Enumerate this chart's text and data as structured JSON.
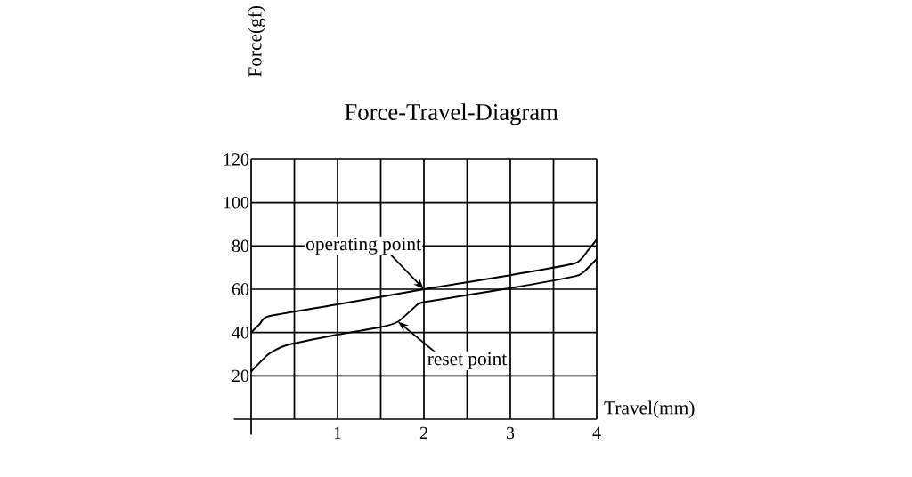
{
  "chart_data": {
    "type": "line",
    "title": "Force-Travel-Diagram",
    "xlabel": "Travel(mm)",
    "ylabel": "Force(gf)",
    "xlim": [
      0,
      4
    ],
    "ylim": [
      0,
      120
    ],
    "xticks": [
      {
        "value": 0.5,
        "label": null
      },
      1,
      {
        "value": 1.5,
        "label": null
      },
      2,
      {
        "value": 2.5,
        "label": null
      },
      3,
      {
        "value": 3.5,
        "label": null
      },
      4
    ],
    "yticks": [
      20,
      40,
      60,
      80,
      100,
      120
    ],
    "grid": true,
    "marker": "none",
    "line_style": "solid",
    "series": [
      {
        "color": "#000000",
        "x": [
          0,
          0.1,
          0.2,
          1,
          2,
          3,
          3.75,
          3.9,
          4
        ],
        "values": [
          40,
          44,
          47.5,
          53,
          60,
          66.5,
          72,
          78,
          83
        ]
      },
      {
        "color": "#000000",
        "x": [
          0,
          0.2,
          0.4,
          1,
          1.5,
          1.7,
          1.9,
          2,
          3,
          3.75,
          3.85,
          4
        ],
        "values": [
          22,
          30,
          34,
          39,
          42.5,
          45,
          52,
          54,
          60.5,
          66,
          68,
          74
        ]
      }
    ],
    "annotations": [
      {
        "text": "operating point",
        "x": 2,
        "y": 60
      },
      {
        "text": "reset point",
        "x": 1.7,
        "y": 45
      }
    ]
  }
}
